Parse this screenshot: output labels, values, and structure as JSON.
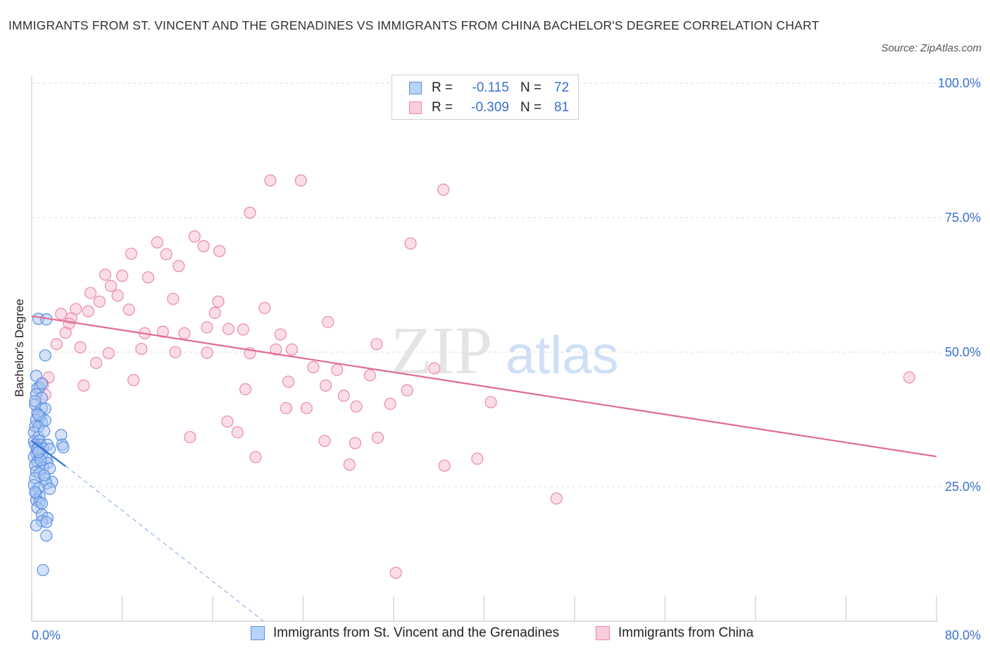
{
  "title": "IMMIGRANTS FROM ST. VINCENT AND THE GRENADINES VS IMMIGRANTS FROM CHINA BACHELOR'S DEGREE CORRELATION CHART",
  "source": "Source: ZipAtlas.com",
  "watermark": {
    "zip": "ZIP",
    "atlas": "atlas"
  },
  "colors": {
    "blue_fill": "#a9c6f3",
    "blue_stroke": "#5b8fe0",
    "blue_line": "#2c6fd6",
    "pink_fill": "#f6bcd0",
    "pink_stroke": "#e98aac",
    "pink_line": "#e06a94",
    "axis_text": "#3a6fd0",
    "grid": "#dcdcdc"
  },
  "legend_top": [
    {
      "r_label": "R =",
      "r_value": "-0.115",
      "n_label": "N =",
      "n_value": "72"
    },
    {
      "r_label": "R =",
      "r_value": "-0.309",
      "n_label": "N =",
      "n_value": "81"
    }
  ],
  "chart_data": {
    "type": "scatter",
    "title": "IMMIGRANTS FROM ST. VINCENT AND THE GRENADINES VS IMMIGRANTS FROM CHINA BACHELOR'S DEGREE CORRELATION CHART",
    "xlabel": "",
    "ylabel": "Bachelor's Degree",
    "xlim": [
      0,
      80
    ],
    "ylim": [
      0,
      100
    ],
    "x_tick_labels": [
      "0.0%",
      "80.0%"
    ],
    "y_ticks": [
      25,
      50,
      75,
      100
    ],
    "y_tick_labels": [
      "25.0%",
      "50.0%",
      "75.0%",
      "100.0%"
    ],
    "grid": true,
    "legend_position": "bottom",
    "series": [
      {
        "name": "Immigrants from St. Vincent and the Grenadines",
        "color": "#5b8fe0",
        "r": -0.115,
        "n": 72,
        "trend": {
          "x": [
            0,
            3
          ],
          "y": [
            33.5,
            28.8
          ],
          "dashed_extension": {
            "x": [
              3,
              20.5
            ],
            "y": [
              28.8,
              0
            ]
          }
        },
        "points": [
          [
            0.6,
            56.2
          ],
          [
            1.3,
            56.1
          ],
          [
            1.2,
            49.4
          ],
          [
            0.4,
            45.6
          ],
          [
            0.5,
            43.3
          ],
          [
            0.7,
            43.4
          ],
          [
            0.9,
            44.2
          ],
          [
            0.4,
            42.2
          ],
          [
            0.9,
            41.5
          ],
          [
            0.3,
            40.3
          ],
          [
            0.9,
            39.6
          ],
          [
            1.2,
            39.5
          ],
          [
            0.5,
            38.6
          ],
          [
            0.8,
            38.0
          ],
          [
            0.4,
            37.4
          ],
          [
            0.9,
            37.0
          ],
          [
            1.2,
            37.3
          ],
          [
            0.3,
            36.2
          ],
          [
            0.6,
            36.1
          ],
          [
            0.2,
            35.1
          ],
          [
            0.6,
            34.2
          ],
          [
            0.2,
            33.4
          ],
          [
            0.7,
            33.6
          ],
          [
            2.6,
            34.6
          ],
          [
            0.3,
            32.8
          ],
          [
            0.8,
            32.8
          ],
          [
            1.4,
            32.8
          ],
          [
            2.7,
            32.8
          ],
          [
            0.5,
            32.2
          ],
          [
            1.0,
            32.1
          ],
          [
            1.6,
            32.0
          ],
          [
            2.8,
            32.3
          ],
          [
            0.4,
            31.3
          ],
          [
            0.9,
            31.0
          ],
          [
            0.2,
            30.5
          ],
          [
            0.7,
            30.2
          ],
          [
            1.3,
            30.2
          ],
          [
            0.5,
            29.6
          ],
          [
            1.4,
            29.4
          ],
          [
            0.3,
            29.0
          ],
          [
            1.0,
            28.6
          ],
          [
            1.6,
            28.4
          ],
          [
            0.4,
            27.8
          ],
          [
            0.7,
            27.5
          ],
          [
            0.3,
            26.6
          ],
          [
            1.2,
            26.4
          ],
          [
            1.8,
            25.9
          ],
          [
            1.3,
            25.6
          ],
          [
            0.2,
            25.3
          ],
          [
            0.6,
            24.7
          ],
          [
            1.6,
            24.6
          ],
          [
            0.4,
            23.7
          ],
          [
            0.7,
            23.2
          ],
          [
            0.4,
            22.5
          ],
          [
            0.7,
            22.1
          ],
          [
            0.5,
            21.1
          ],
          [
            0.9,
            19.8
          ],
          [
            1.4,
            19.2
          ],
          [
            0.9,
            18.6
          ],
          [
            1.3,
            18.4
          ],
          [
            0.4,
            17.8
          ],
          [
            1.3,
            15.9
          ],
          [
            1.0,
            9.5
          ],
          [
            0.3,
            40.9
          ],
          [
            0.6,
            38.3
          ],
          [
            1.1,
            35.3
          ],
          [
            0.5,
            31.9
          ],
          [
            0.8,
            29.9
          ],
          [
            1.1,
            27.1
          ],
          [
            0.3,
            24.0
          ],
          [
            0.9,
            21.9
          ],
          [
            0.6,
            31.4
          ]
        ]
      },
      {
        "name": "Immigrants from China",
        "color": "#e98aac",
        "r": -0.309,
        "n": 81,
        "trend": {
          "x": [
            0,
            80
          ],
          "y": [
            56.7,
            30.6
          ]
        },
        "points": [
          [
            21.1,
            81.9
          ],
          [
            23.8,
            81.9
          ],
          [
            36.4,
            80.2
          ],
          [
            19.3,
            75.9
          ],
          [
            14.4,
            71.5
          ],
          [
            11.1,
            70.4
          ],
          [
            16.6,
            68.8
          ],
          [
            15.2,
            69.7
          ],
          [
            8.8,
            68.3
          ],
          [
            11.9,
            68.2
          ],
          [
            33.5,
            70.2
          ],
          [
            6.5,
            64.4
          ],
          [
            8.0,
            64.2
          ],
          [
            10.3,
            63.9
          ],
          [
            7.0,
            62.3
          ],
          [
            5.2,
            61.0
          ],
          [
            7.6,
            60.5
          ],
          [
            12.5,
            59.9
          ],
          [
            6.0,
            59.4
          ],
          [
            16.5,
            59.4
          ],
          [
            20.6,
            58.2
          ],
          [
            8.6,
            57.9
          ],
          [
            3.9,
            58.0
          ],
          [
            5.0,
            57.6
          ],
          [
            2.6,
            57.1
          ],
          [
            16.2,
            57.3
          ],
          [
            3.5,
            56.3
          ],
          [
            3.3,
            55.3
          ],
          [
            10.0,
            53.5
          ],
          [
            11.6,
            53.8
          ],
          [
            13.5,
            53.5
          ],
          [
            3.0,
            53.6
          ],
          [
            15.5,
            54.6
          ],
          [
            17.4,
            54.3
          ],
          [
            18.7,
            54.2
          ],
          [
            22.0,
            53.3
          ],
          [
            26.2,
            55.6
          ],
          [
            2.2,
            51.5
          ],
          [
            30.5,
            51.5
          ],
          [
            9.7,
            50.6
          ],
          [
            12.7,
            50.0
          ],
          [
            15.5,
            49.9
          ],
          [
            19.3,
            49.8
          ],
          [
            6.8,
            49.8
          ],
          [
            21.6,
            50.5
          ],
          [
            23.0,
            50.5
          ],
          [
            5.7,
            48.0
          ],
          [
            1.5,
            45.3
          ],
          [
            27.0,
            46.7
          ],
          [
            29.9,
            45.7
          ],
          [
            35.6,
            47.0
          ],
          [
            1.0,
            44.0
          ],
          [
            9.0,
            44.8
          ],
          [
            22.7,
            44.5
          ],
          [
            26.0,
            43.8
          ],
          [
            18.9,
            43.1
          ],
          [
            33.2,
            42.9
          ],
          [
            4.6,
            43.8
          ],
          [
            27.6,
            41.9
          ],
          [
            31.7,
            40.4
          ],
          [
            40.6,
            40.7
          ],
          [
            28.7,
            39.9
          ],
          [
            22.5,
            39.6
          ],
          [
            24.3,
            39.6
          ],
          [
            17.3,
            37.1
          ],
          [
            18.2,
            35.1
          ],
          [
            14.0,
            34.2
          ],
          [
            25.9,
            33.5
          ],
          [
            28.6,
            33.1
          ],
          [
            30.6,
            34.1
          ],
          [
            19.8,
            30.5
          ],
          [
            39.4,
            30.2
          ],
          [
            28.1,
            29.1
          ],
          [
            36.5,
            28.9
          ],
          [
            46.4,
            22.8
          ],
          [
            32.2,
            9.0
          ],
          [
            77.6,
            45.3
          ],
          [
            1.2,
            42.1
          ],
          [
            13.0,
            66.0
          ],
          [
            4.3,
            50.9
          ],
          [
            24.9,
            47.2
          ]
        ]
      }
    ]
  }
}
